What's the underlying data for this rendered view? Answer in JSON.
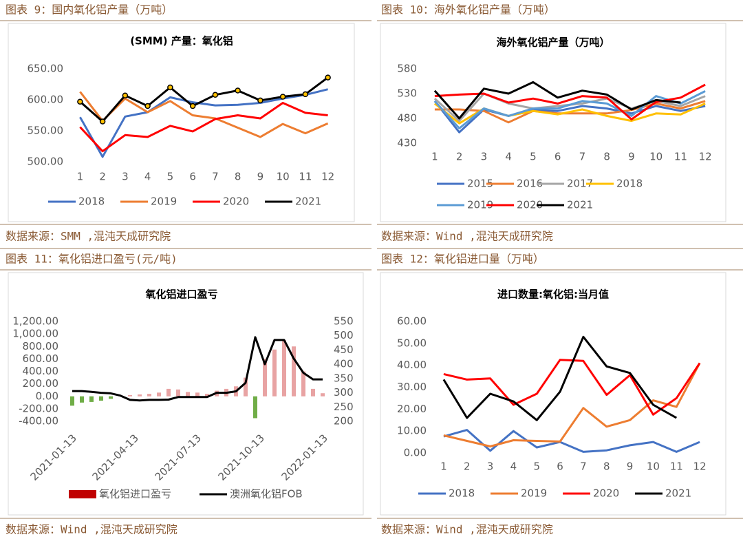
{
  "panels": [
    {
      "caption": "图表 9：国内氧化铝产量（万吨）",
      "source": "数据来源：SMM ,混沌天成研究院"
    },
    {
      "caption": "图表 10：海外氧化铝产量（万吨）",
      "source": "数据来源：Wind ,混沌天成研究院"
    },
    {
      "caption": "图表 11：氧化铝进口盈亏(元/吨)",
      "source": "数据来源：Wind ,混沌天成研究院"
    },
    {
      "caption": "图表 12：氧化铝进口量（万吨）",
      "source": "数据来源：Wind ,混沌天成研究院"
    }
  ],
  "chart_data": [
    {
      "type": "line",
      "title": "(SMM) 产量：氧化铝",
      "categories": [
        "1",
        "2",
        "3",
        "4",
        "5",
        "6",
        "7",
        "8",
        "9",
        "10",
        "11",
        "12"
      ],
      "ylim": [
        500,
        650
      ],
      "yticks": [
        {
          "value": 500,
          "label": "500.00"
        },
        {
          "value": 550,
          "label": "550.00"
        },
        {
          "value": 600,
          "label": "600.00"
        },
        {
          "value": 650,
          "label": "650.00"
        }
      ],
      "series": [
        {
          "name": "2018",
          "color": "#4472c4",
          "values": [
            572,
            508,
            573,
            580,
            604,
            596,
            591,
            592,
            595,
            602,
            608,
            617
          ]
        },
        {
          "name": "2019",
          "color": "#ed7d31",
          "values": [
            613,
            566,
            602,
            580,
            598,
            575,
            570,
            555,
            540,
            561,
            546,
            562
          ]
        },
        {
          "name": "2020",
          "color": "#ff0000",
          "values": [
            556,
            517,
            543,
            540,
            558,
            549,
            569,
            575,
            570,
            595,
            579,
            575
          ]
        },
        {
          "name": "2021",
          "color": "#000000",
          "markers": true,
          "marker_color": "#ffc000",
          "values": [
            597,
            565,
            607,
            590,
            620,
            590,
            608,
            615,
            599,
            605,
            609,
            636
          ]
        }
      ]
    },
    {
      "type": "line",
      "title": "海外氧化铝产量（万吨）",
      "categories": [
        "1",
        "2",
        "3",
        "4",
        "5",
        "6",
        "7",
        "8",
        "9",
        "10",
        "11",
        "12"
      ],
      "ylim": [
        430,
        580
      ],
      "yticks": [
        430,
        480,
        530,
        580
      ],
      "series": [
        {
          "name": "2015",
          "color": "#4472c4",
          "values": [
            515,
            452,
            498,
            485,
            497,
            495,
            505,
            500,
            490,
            505,
            495,
            505
          ]
        },
        {
          "name": "2016",
          "color": "#ed7d31",
          "values": [
            498,
            498,
            495,
            472,
            495,
            490,
            490,
            490,
            497,
            510,
            500,
            515
          ]
        },
        {
          "name": "2017",
          "color": "#a5a5a5",
          "values": [
            520,
            475,
            530,
            510,
            500,
            505,
            510,
            520,
            500,
            515,
            505,
            525
          ]
        },
        {
          "name": "2018",
          "color": "#ffc000",
          "values": [
            510,
            470,
            500,
            485,
            495,
            488,
            498,
            485,
            475,
            490,
            488,
            510
          ]
        },
        {
          "name": "2019",
          "color": "#5b9bd5",
          "values": [
            515,
            460,
            500,
            485,
            500,
            500,
            515,
            510,
            485,
            525,
            510,
            535
          ]
        },
        {
          "name": "2020",
          "color": "#ff0000",
          "values": [
            525,
            528,
            530,
            512,
            520,
            510,
            525,
            522,
            478,
            513,
            522,
            548
          ]
        },
        {
          "name": "2021",
          "color": "#000000",
          "values": [
            536,
            480,
            540,
            530,
            553,
            522,
            536,
            528,
            498,
            517,
            512,
            null
          ]
        }
      ]
    },
    {
      "type": "bar_line",
      "title": "氧化铝进口盈亏",
      "x": [
        "2021-01-13",
        "2021-01-27",
        "2021-02-10",
        "2021-02-24",
        "2021-03-10",
        "2021-03-24",
        "2021-04-07",
        "2021-04-21",
        "2021-05-05",
        "2021-05-19",
        "2021-06-02",
        "2021-06-16",
        "2021-06-30",
        "2021-07-14",
        "2021-07-28",
        "2021-08-11",
        "2021-08-25",
        "2021-09-08",
        "2021-09-22",
        "2021-10-06",
        "2021-10-20",
        "2021-11-03",
        "2021-11-17",
        "2021-12-01",
        "2021-12-15",
        "2021-12-29",
        "2022-01-12"
      ],
      "xlim": [
        "2021-01-13",
        "2022-01-13"
      ],
      "xticks": [
        "2021-01-13",
        "2021-04-13",
        "2021-07-13",
        "2021-10-13",
        "2022-01-13"
      ],
      "ylim": [
        -400,
        1200
      ],
      "yticks": [
        {
          "value": -400,
          "label": "-400.00"
        },
        {
          "value": -200,
          "label": "-200.00"
        },
        {
          "value": 0,
          "label": "0.00"
        },
        {
          "value": 200,
          "label": "200.00"
        },
        {
          "value": 400,
          "label": "400.00"
        },
        {
          "value": 600,
          "label": "600.00"
        },
        {
          "value": 800,
          "label": "800.00"
        },
        {
          "value": 1000,
          "label": "1,000.00"
        },
        {
          "value": 1200,
          "label": "1,200.00"
        }
      ],
      "y2lim": [
        200,
        550
      ],
      "y2ticks": [
        200,
        250,
        300,
        350,
        400,
        450,
        500,
        550
      ],
      "series": [
        {
          "name": "氧化铝进口盈亏",
          "type": "bar",
          "color": "#c00000",
          "fill": "#e8a3a3",
          "negative_color": "#70ad47",
          "values": [
            -150,
            -100,
            -90,
            -70,
            -40,
            10,
            20,
            30,
            40,
            60,
            120,
            110,
            70,
            60,
            40,
            90,
            120,
            160,
            300,
            -350,
            600,
            750,
            900,
            800,
            400,
            120,
            50
          ]
        },
        {
          "name": "澳洲氧化铝FOB",
          "type": "line",
          "axis": "y2",
          "color": "#000000",
          "values": [
            306,
            306,
            303,
            300,
            298,
            290,
            275,
            273,
            275,
            275,
            276,
            285,
            285,
            285,
            285,
            300,
            300,
            305,
            335,
            495,
            400,
            485,
            485,
            420,
            370,
            347,
            347
          ]
        }
      ]
    },
    {
      "type": "line",
      "title": "进口数量:氧化铝:当月值",
      "categories": [
        "1",
        "2",
        "3",
        "4",
        "5",
        "6",
        "7",
        "8",
        "9",
        "10",
        "11",
        "12"
      ],
      "ylim": [
        0,
        60
      ],
      "yticks": [
        {
          "value": 0,
          "label": "0.00"
        },
        {
          "value": 10,
          "label": "10.00"
        },
        {
          "value": 20,
          "label": "20.00"
        },
        {
          "value": 30,
          "label": "30.00"
        },
        {
          "value": 40,
          "label": "40.00"
        },
        {
          "value": 50,
          "label": "50.00"
        },
        {
          "value": 60,
          "label": "60.00"
        }
      ],
      "series": [
        {
          "name": "2018",
          "color": "#4472c4",
          "values": [
            7.5,
            10.5,
            1,
            10,
            2.5,
            5,
            0.5,
            1.2,
            3.5,
            5,
            0.5,
            5
          ]
        },
        {
          "name": "2019",
          "color": "#ed7d31",
          "values": [
            8,
            5.5,
            3,
            5.8,
            5.5,
            5.2,
            20.5,
            12,
            15,
            24,
            21,
            41
          ]
        },
        {
          "name": "2020",
          "color": "#ff0000",
          "values": [
            36,
            33.5,
            34,
            22,
            27,
            42.5,
            42,
            26.5,
            35.5,
            17.5,
            25,
            41
          ]
        },
        {
          "name": "2021",
          "color": "#000000",
          "values": [
            33.5,
            16,
            27,
            23.5,
            15,
            28,
            53,
            39.5,
            36.5,
            22,
            16,
            null
          ]
        }
      ]
    }
  ]
}
